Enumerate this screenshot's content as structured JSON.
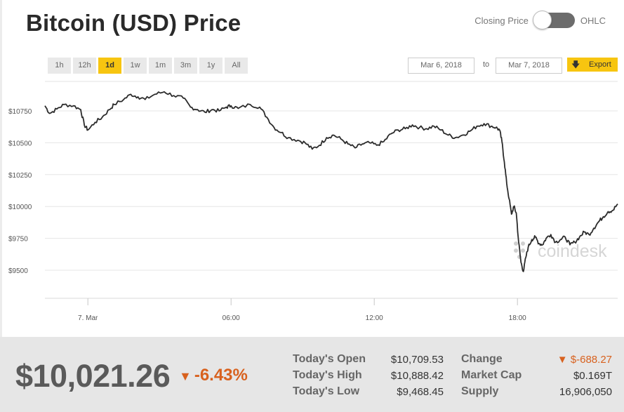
{
  "title": "Bitcoin (USD) Price",
  "toggle": {
    "left_label": "Closing Price",
    "right_label": "OHLC"
  },
  "ranges": [
    "1h",
    "12h",
    "1d",
    "1w",
    "1m",
    "3m",
    "1y",
    "All"
  ],
  "active_range": "1d",
  "date_from": "Mar 6, 2018",
  "date_to_label": "to",
  "date_to": "Mar 7, 2018",
  "export_label": "Export",
  "watermark": "coindesk",
  "accent_color": "#f7c510",
  "down_color": "#d8611e",
  "chart_data": {
    "type": "line",
    "xlabel": "",
    "ylabel": "",
    "x_ticks": [
      {
        "label": "7. Mar",
        "hour": 0
      },
      {
        "label": "06:00",
        "hour": 6
      },
      {
        "label": "12:00",
        "hour": 12
      },
      {
        "label": "18:00",
        "hour": 18
      }
    ],
    "y_ticks": [
      "$10750",
      "$10500",
      "$10250",
      "$10000",
      "$9750",
      "$9500"
    ],
    "y_tick_values": [
      10750,
      10500,
      10250,
      10000,
      9750,
      9500
    ],
    "xlim_hours": [
      -1.8,
      22.2
    ],
    "ylim": [
      9200,
      10970
    ],
    "grid": true,
    "series": [
      {
        "points": [
          [
            -1.8,
            10790
          ],
          [
            -1.6,
            10730
          ],
          [
            -1.3,
            10765
          ],
          [
            -1.0,
            10800
          ],
          [
            -0.6,
            10790
          ],
          [
            -0.3,
            10760
          ],
          [
            -0.15,
            10640
          ],
          [
            0.0,
            10600
          ],
          [
            0.3,
            10660
          ],
          [
            0.6,
            10700
          ],
          [
            0.9,
            10760
          ],
          [
            1.1,
            10800
          ],
          [
            1.5,
            10840
          ],
          [
            1.8,
            10880
          ],
          [
            2.1,
            10860
          ],
          [
            2.4,
            10840
          ],
          [
            2.8,
            10880
          ],
          [
            3.2,
            10900
          ],
          [
            3.6,
            10870
          ],
          [
            4.0,
            10850
          ],
          [
            4.3,
            10780
          ],
          [
            4.6,
            10760
          ],
          [
            4.9,
            10740
          ],
          [
            5.2,
            10760
          ],
          [
            5.5,
            10750
          ],
          [
            5.8,
            10780
          ],
          [
            6.0,
            10790
          ],
          [
            6.3,
            10770
          ],
          [
            6.8,
            10800
          ],
          [
            7.2,
            10780
          ],
          [
            7.5,
            10700
          ],
          [
            7.8,
            10620
          ],
          [
            8.1,
            10580
          ],
          [
            8.4,
            10540
          ],
          [
            8.8,
            10520
          ],
          [
            9.1,
            10500
          ],
          [
            9.4,
            10450
          ],
          [
            9.7,
            10480
          ],
          [
            10.0,
            10540
          ],
          [
            10.3,
            10560
          ],
          [
            10.6,
            10530
          ],
          [
            10.9,
            10490
          ],
          [
            11.2,
            10460
          ],
          [
            11.5,
            10490
          ],
          [
            11.8,
            10500
          ],
          [
            12.1,
            10480
          ],
          [
            12.4,
            10510
          ],
          [
            12.7,
            10570
          ],
          [
            13.0,
            10600
          ],
          [
            13.3,
            10610
          ],
          [
            13.6,
            10640
          ],
          [
            13.9,
            10620
          ],
          [
            14.2,
            10610
          ],
          [
            14.5,
            10630
          ],
          [
            14.8,
            10600
          ],
          [
            15.1,
            10560
          ],
          [
            15.4,
            10540
          ],
          [
            15.7,
            10560
          ],
          [
            16.0,
            10590
          ],
          [
            16.3,
            10630
          ],
          [
            16.6,
            10650
          ],
          [
            16.9,
            10630
          ],
          [
            17.1,
            10620
          ],
          [
            17.25,
            10600
          ],
          [
            17.35,
            10510
          ],
          [
            17.45,
            10350
          ],
          [
            17.55,
            10180
          ],
          [
            17.65,
            10060
          ],
          [
            17.75,
            9940
          ],
          [
            17.85,
            10000
          ],
          [
            17.95,
            9950
          ],
          [
            18.05,
            9720
          ],
          [
            18.15,
            9560
          ],
          [
            18.25,
            9490
          ],
          [
            18.35,
            9600
          ],
          [
            18.45,
            9680
          ],
          [
            18.6,
            9740
          ],
          [
            18.75,
            9760
          ],
          [
            18.9,
            9710
          ],
          [
            19.05,
            9700
          ],
          [
            19.2,
            9750
          ],
          [
            19.4,
            9780
          ],
          [
            19.6,
            9720
          ],
          [
            19.8,
            9740
          ],
          [
            20.0,
            9760
          ],
          [
            20.2,
            9700
          ],
          [
            20.4,
            9720
          ],
          [
            20.6,
            9760
          ],
          [
            20.8,
            9800
          ],
          [
            21.0,
            9780
          ],
          [
            21.2,
            9830
          ],
          [
            21.4,
            9880
          ],
          [
            21.6,
            9920
          ],
          [
            21.8,
            9960
          ],
          [
            22.0,
            9970
          ],
          [
            22.2,
            10020
          ]
        ]
      }
    ]
  },
  "footer": {
    "price": "$10,021.26",
    "change_pct": "-6.43%",
    "stats": [
      {
        "label": "Today's Open",
        "value": "$10,709.53"
      },
      {
        "label": "Today's High",
        "value": "$10,888.42"
      },
      {
        "label": "Today's Low",
        "value": "$9,468.45"
      }
    ],
    "stats_right": [
      {
        "label": "Change",
        "value": "$-688.27"
      },
      {
        "label": "Market Cap",
        "value": "$0.169T"
      },
      {
        "label": "Supply",
        "value": "16,906,050"
      }
    ]
  }
}
